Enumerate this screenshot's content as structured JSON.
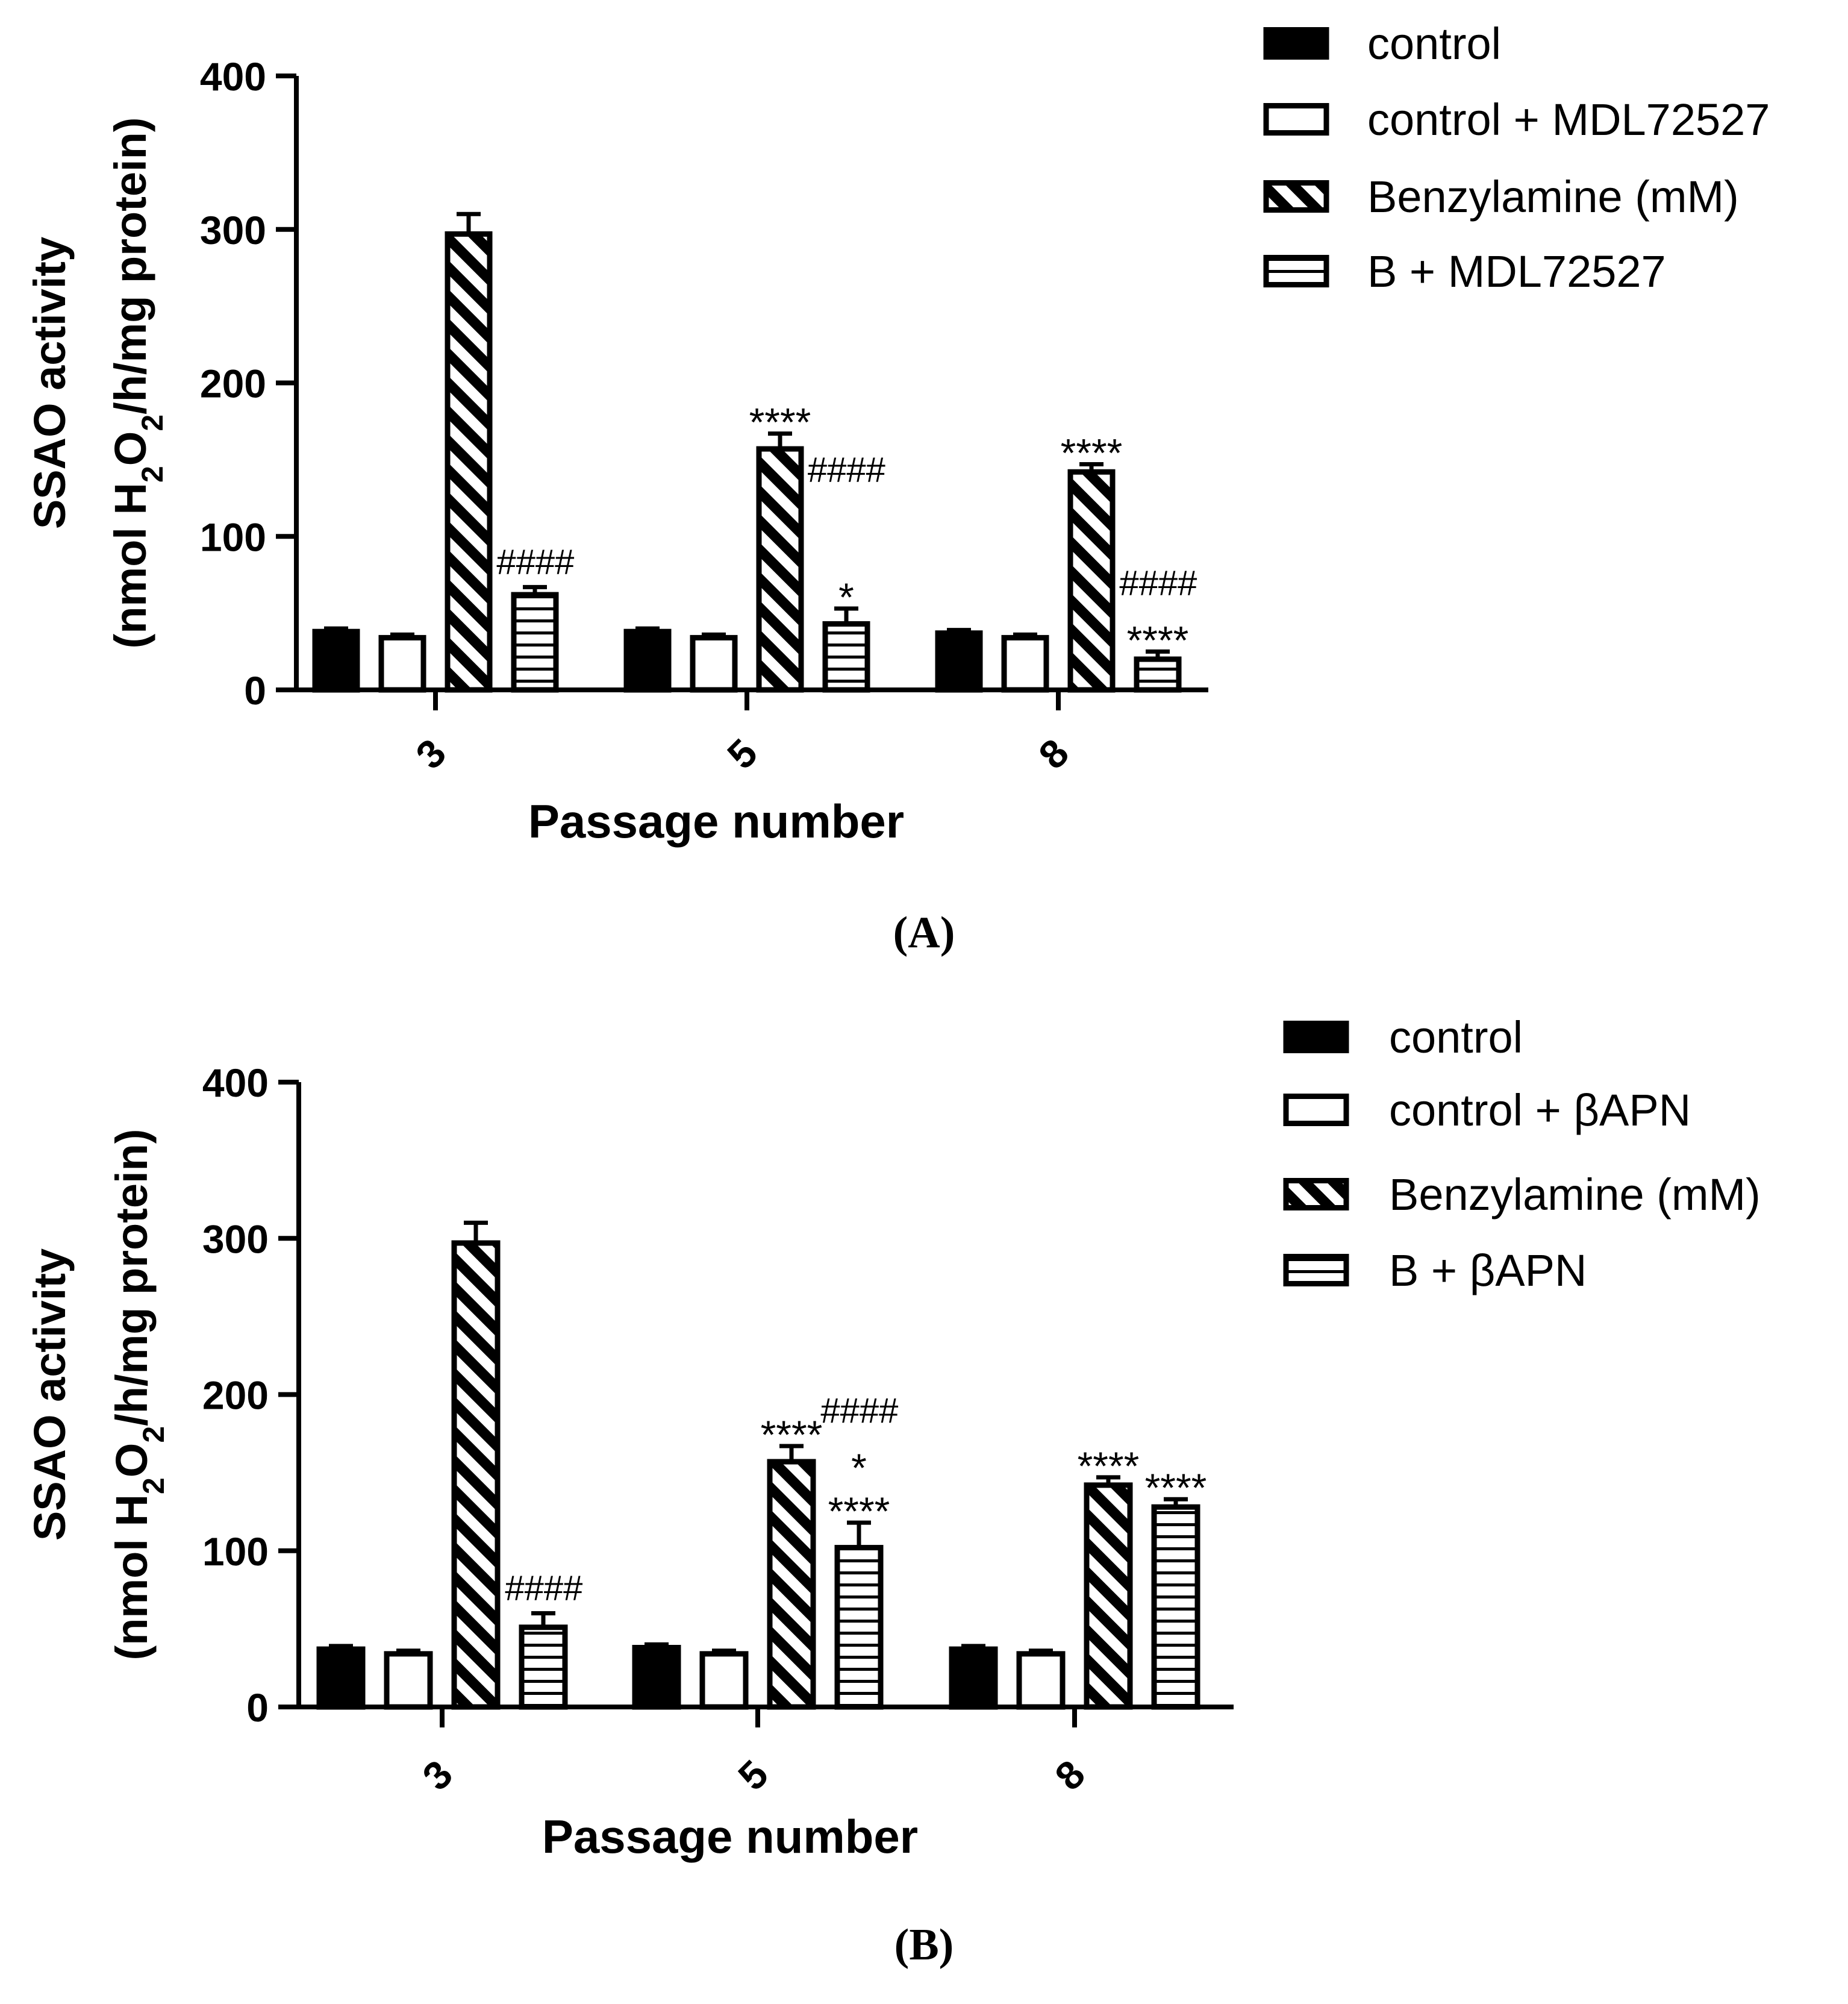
{
  "colors": {
    "ink": "#000000",
    "paper": "#ffffff"
  },
  "chart_data": [
    {
      "id": "A",
      "panel_label": "(A)",
      "type": "bar",
      "categories": [
        "3",
        "5",
        "8"
      ],
      "xlabel": "Passage number",
      "ylabel_line1": "SSAO activity",
      "ylabel_line2_prefix": "(nmol H",
      "ylabel_sub1": "2",
      "ylabel_mid": "O",
      "ylabel_sub2": "2",
      "ylabel_line2_suffix": "/h/mg protein)",
      "ylim": [
        0,
        400
      ],
      "yticks": [
        0,
        100,
        200,
        300,
        400
      ],
      "series": [
        {
          "name": "control",
          "pattern": "solid",
          "values": [
            38,
            38,
            37
          ],
          "errors": [
            2,
            2,
            2
          ]
        },
        {
          "name": "control + MDL72527",
          "pattern": "open",
          "values": [
            34,
            34,
            34
          ],
          "errors": [
            2,
            2,
            2
          ]
        },
        {
          "name": "Benzylamine (mM)",
          "pattern": "diagonal",
          "values": [
            297,
            157,
            142
          ],
          "errors": [
            13,
            10,
            5
          ]
        },
        {
          "name": "B + MDL72527",
          "pattern": "horizontal",
          "values": [
            62,
            43,
            20
          ],
          "errors": [
            5,
            10,
            5
          ]
        }
      ],
      "annotations": [
        {
          "category": 0,
          "series": 3,
          "lines": [
            "####"
          ]
        },
        {
          "category": 1,
          "series": 2,
          "lines": [
            "****"
          ]
        },
        {
          "category": 1,
          "series": 2,
          "lines": [
            "####"
          ],
          "position": "right"
        },
        {
          "category": 1,
          "series": 3,
          "lines": [
            "*"
          ]
        },
        {
          "category": 2,
          "series": 2,
          "lines": [
            "****"
          ]
        },
        {
          "category": 2,
          "series": 3,
          "lines": [
            "####",
            "****"
          ]
        }
      ]
    },
    {
      "id": "B",
      "panel_label": "(B)",
      "type": "bar",
      "categories": [
        "3",
        "5",
        "8"
      ],
      "xlabel": "Passage number",
      "ylabel_line1": "SSAO activity",
      "ylabel_line2_prefix": "(nmol H",
      "ylabel_sub1": "2",
      "ylabel_mid": "O",
      "ylabel_sub2": "2",
      "ylabel_line2_suffix": "/h/mg protein)",
      "ylim": [
        0,
        400
      ],
      "yticks": [
        0,
        100,
        200,
        300,
        400
      ],
      "series": [
        {
          "name": "control",
          "pattern": "solid",
          "values": [
            37,
            38,
            37
          ],
          "errors": [
            2,
            2,
            2
          ]
        },
        {
          "name": "control + βAPN",
          "pattern": "open",
          "values": [
            34,
            34,
            34
          ],
          "errors": [
            2,
            2,
            2
          ]
        },
        {
          "name": "Benzylamine (mM)",
          "pattern": "diagonal",
          "values": [
            297,
            157,
            142
          ],
          "errors": [
            13,
            10,
            5
          ]
        },
        {
          "name": "B + βAPN",
          "pattern": "horizontal",
          "values": [
            51,
            102,
            128
          ],
          "errors": [
            9,
            16,
            5
          ]
        }
      ],
      "annotations": [
        {
          "category": 0,
          "series": 3,
          "lines": [
            "####"
          ]
        },
        {
          "category": 1,
          "series": 2,
          "lines": [
            "****"
          ]
        },
        {
          "category": 1,
          "series": 3,
          "lines": [
            "####",
            "*",
            "****"
          ]
        },
        {
          "category": 2,
          "series": 2,
          "lines": [
            "****"
          ]
        },
        {
          "category": 2,
          "series": 3,
          "lines": [
            "****"
          ]
        }
      ]
    }
  ]
}
